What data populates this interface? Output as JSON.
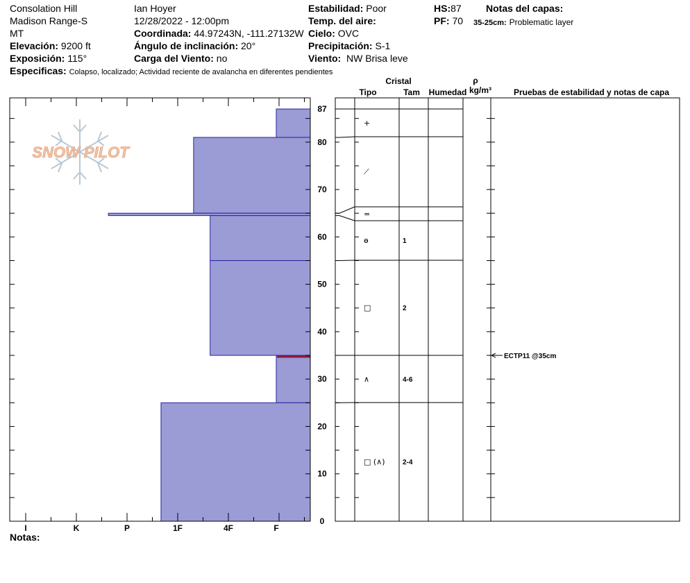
{
  "header": {
    "location": "Consolation Hill",
    "range": "Madison Range-S",
    "state": "MT",
    "elevation_label": "Elevación:",
    "elevation_value": "9200 ft",
    "aspect_label": "Exposición:",
    "aspect_value": "115°",
    "specifics_label": "Especificas:",
    "specifics_value": "Colapso, localizado; Actividad reciente de avalancha en diferentes pendientes",
    "observer": "Ian Hoyer",
    "datetime": "12/28/2022 - 12:00pm",
    "coord_label": "Coordinada:",
    "coord_value": "44.97243N, -111.27132W",
    "slope_label": "Ángulo de inclinación:",
    "slope_value": "20°",
    "wind_load_label": "Carga del Viento:",
    "wind_load_value": "no",
    "stability_label": "Estabilidad:",
    "stability_value": "Poor",
    "air_temp_label": "Temp. del aire:",
    "air_temp_value": "",
    "sky_label": "Cielo:",
    "sky_value": "OVC",
    "precip_label": "Precipitación:",
    "precip_value": "S-1",
    "wind_label": "Viento:",
    "wind_value": "NW Brisa leve",
    "hs_label": "HS:",
    "hs_value": "87",
    "pf_label": "PF:",
    "pf_value": "70",
    "layer_notes_label": "Notas del capas:",
    "layer_note_depth": "35-25cm:",
    "layer_note_text": "Problematic layer",
    "watermark": "SNOW PILOT"
  },
  "table_headers": {
    "crystal": "Cristal",
    "type": "Tipo",
    "size": "Tam",
    "moisture": "Humedad",
    "rho": "ρ",
    "density_unit": "kg/m³",
    "tests": "Pruebas de estabilidad y notas de capa"
  },
  "notes_label": "Notas:",
  "test_result": {
    "label": "ECTP11 @35cm",
    "depth": 35
  },
  "colors": {
    "fill": "#9b9bd6",
    "stroke": "#2323a0",
    "critical": "#8b1a3a",
    "watermark": "#f2c4a8",
    "flake": "#b8c8d4"
  },
  "chart_data": {
    "type": "snow_profile",
    "y_axis": {
      "range": [
        0,
        87
      ],
      "ticks": [
        0,
        10,
        20,
        30,
        40,
        50,
        60,
        70,
        80,
        87
      ]
    },
    "hardness_scale": [
      "I",
      "K",
      "P",
      "1F",
      "4F",
      "F"
    ],
    "hardness_profile": [
      {
        "top": 87,
        "bottom": 81,
        "hardness": 5.0
      },
      {
        "top": 81,
        "bottom": 65,
        "hardness": 3.35
      },
      {
        "top": 65,
        "bottom": 64.5,
        "hardness": 1.65
      },
      {
        "top": 64.5,
        "bottom": 55,
        "hardness": 3.68
      },
      {
        "top": 55,
        "bottom": 35,
        "hardness": 3.68
      },
      {
        "top": 35,
        "bottom": 25,
        "hardness": 5.0
      },
      {
        "top": 25,
        "bottom": 0,
        "hardness": 2.7
      }
    ],
    "critical_layer": {
      "top": 35,
      "bottom": 34.5
    },
    "layers": [
      {
        "top": 87,
        "bottom": 81,
        "type": "+",
        "size": ""
      },
      {
        "top": 81,
        "bottom": 66,
        "type": "⟋",
        "size": ""
      },
      {
        "top": 66,
        "bottom": 63,
        "type": "=",
        "size": ""
      },
      {
        "top": 63,
        "bottom": 55,
        "type": "ɵ",
        "size": "1"
      },
      {
        "top": 55,
        "bottom": 35,
        "type": "□",
        "size": "2"
      },
      {
        "top": 35,
        "bottom": 25,
        "type": "∧",
        "size": "4-6"
      },
      {
        "top": 25,
        "bottom": 0,
        "type": "□ (∧)",
        "size": "2-4"
      }
    ]
  }
}
